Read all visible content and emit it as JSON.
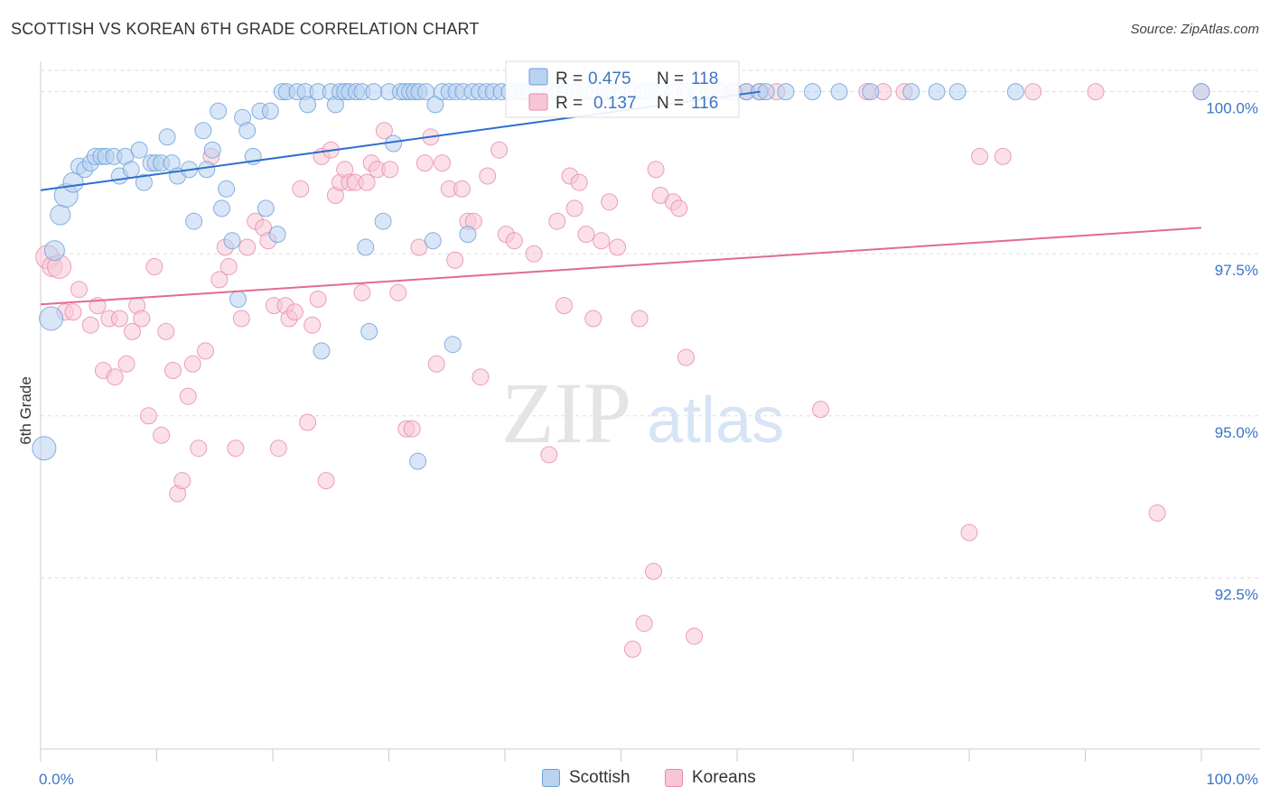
{
  "title": "SCOTTISH VS KOREAN 6TH GRADE CORRELATION CHART",
  "source": "Source: ZipAtlas.com",
  "watermark": {
    "zip": "ZIP",
    "atlas": "atlas"
  },
  "chart_data": {
    "type": "scatter",
    "xlabel": "",
    "ylabel": "6th Grade",
    "xlim": [
      0,
      100
    ],
    "ylim": [
      90.0,
      100.3
    ],
    "x_tick_labels": [
      "0.0%",
      "100.0%"
    ],
    "y_ticks": [
      {
        "value": 100.0,
        "label": "100.0%"
      },
      {
        "value": 97.5,
        "label": "97.5%"
      },
      {
        "value": 95.0,
        "label": "95.0%"
      },
      {
        "value": 92.5,
        "label": "92.5%"
      }
    ],
    "grid": true,
    "legend_position": "top-center",
    "series": [
      {
        "name": "Scottish",
        "color": "#6a9fd8",
        "fill": "#b8d2f0",
        "stats": {
          "r_label": "R =",
          "r_value": "0.475",
          "n_label": "N =",
          "n_value": "118"
        },
        "trend": {
          "x0": 0,
          "y0": 98.48,
          "x1": 62,
          "y1": 100.0
        },
        "points": [
          [
            0.3,
            94.5
          ],
          [
            1.2,
            97.55
          ],
          [
            0.9,
            96.5
          ],
          [
            1.7,
            98.1
          ],
          [
            2.2,
            98.4
          ],
          [
            2.8,
            98.6
          ],
          [
            3.3,
            98.85
          ],
          [
            3.8,
            98.8
          ],
          [
            4.3,
            98.9
          ],
          [
            4.7,
            99.0
          ],
          [
            5.2,
            99.0
          ],
          [
            5.6,
            99.0
          ],
          [
            6.3,
            99.0
          ],
          [
            6.8,
            98.7
          ],
          [
            7.3,
            99.0
          ],
          [
            7.8,
            98.8
          ],
          [
            8.5,
            99.1
          ],
          [
            8.9,
            98.6
          ],
          [
            9.5,
            98.9
          ],
          [
            9.9,
            98.9
          ],
          [
            10.4,
            98.9
          ],
          [
            10.9,
            99.3
          ],
          [
            11.3,
            98.9
          ],
          [
            11.8,
            98.7
          ],
          [
            12.8,
            98.8
          ],
          [
            13.2,
            98.0
          ],
          [
            14.0,
            99.4
          ],
          [
            14.3,
            98.8
          ],
          [
            14.8,
            99.1
          ],
          [
            15.3,
            99.7
          ],
          [
            15.6,
            98.2
          ],
          [
            16.0,
            98.5
          ],
          [
            16.5,
            97.7
          ],
          [
            17.0,
            96.8
          ],
          [
            17.4,
            99.6
          ],
          [
            17.8,
            99.4
          ],
          [
            18.3,
            99.0
          ],
          [
            18.9,
            99.7
          ],
          [
            19.4,
            98.2
          ],
          [
            19.8,
            99.7
          ],
          [
            20.4,
            97.8
          ],
          [
            20.8,
            100.0
          ],
          [
            21.2,
            100.0
          ],
          [
            22.1,
            100.0
          ],
          [
            22.8,
            100.0
          ],
          [
            23.0,
            99.8
          ],
          [
            23.9,
            100.0
          ],
          [
            24.2,
            96.0
          ],
          [
            25.0,
            100.0
          ],
          [
            25.4,
            99.8
          ],
          [
            25.8,
            100.0
          ],
          [
            26.2,
            100.0
          ],
          [
            26.6,
            100.0
          ],
          [
            27.2,
            100.0
          ],
          [
            27.7,
            100.0
          ],
          [
            28.0,
            97.6
          ],
          [
            28.3,
            96.3
          ],
          [
            28.7,
            100.0
          ],
          [
            29.5,
            98.0
          ],
          [
            30.0,
            100.0
          ],
          [
            30.4,
            99.2
          ],
          [
            31.0,
            100.0
          ],
          [
            31.4,
            100.0
          ],
          [
            31.8,
            100.0
          ],
          [
            32.2,
            100.0
          ],
          [
            32.6,
            100.0
          ],
          [
            33.2,
            100.0
          ],
          [
            33.8,
            97.7
          ],
          [
            34.0,
            99.8
          ],
          [
            34.6,
            100.0
          ],
          [
            35.2,
            100.0
          ],
          [
            35.8,
            100.0
          ],
          [
            36.4,
            100.0
          ],
          [
            36.8,
            97.8
          ],
          [
            37.2,
            100.0
          ],
          [
            37.8,
            100.0
          ],
          [
            38.4,
            100.0
          ],
          [
            39.0,
            100.0
          ],
          [
            39.7,
            100.0
          ],
          [
            40.4,
            100.0
          ],
          [
            41.0,
            100.0
          ],
          [
            41.5,
            100.0
          ],
          [
            42.0,
            100.0
          ],
          [
            42.7,
            100.0
          ],
          [
            43.4,
            100.0
          ],
          [
            44.0,
            100.0
          ],
          [
            44.6,
            100.0
          ],
          [
            45.2,
            100.0
          ],
          [
            46.0,
            100.0
          ],
          [
            46.9,
            100.0
          ],
          [
            47.7,
            100.0
          ],
          [
            48.6,
            100.0
          ],
          [
            49.3,
            100.0
          ],
          [
            50.1,
            100.0
          ],
          [
            51.0,
            100.0
          ],
          [
            51.9,
            100.0
          ],
          [
            52.7,
            100.0
          ],
          [
            53.5,
            100.0
          ],
          [
            54.5,
            100.0
          ],
          [
            55.5,
            100.0
          ],
          [
            56.6,
            100.0
          ],
          [
            57.6,
            100.0
          ],
          [
            58.6,
            100.0
          ],
          [
            59.7,
            100.0
          ],
          [
            32.5,
            94.3
          ],
          [
            35.5,
            96.1
          ],
          [
            60.8,
            100.0
          ],
          [
            61.9,
            100.0
          ],
          [
            62.5,
            100.0
          ],
          [
            64.2,
            100.0
          ],
          [
            66.5,
            100.0
          ],
          [
            68.8,
            100.0
          ],
          [
            71.5,
            100.0
          ],
          [
            75.0,
            100.0
          ],
          [
            77.2,
            100.0
          ],
          [
            79.0,
            100.0
          ],
          [
            84.0,
            100.0
          ],
          [
            100.0,
            100.0
          ]
        ]
      },
      {
        "name": "Koreans",
        "color": "#e68aa9",
        "fill": "#f7c6d5",
        "stats": {
          "r_label": "R =",
          "r_value": "0.137",
          "n_label": "N =",
          "n_value": "116"
        },
        "trend": {
          "x0": 0,
          "y0": 96.72,
          "x1": 100,
          "y1": 97.9
        },
        "points": [
          [
            0.6,
            97.45
          ],
          [
            1.0,
            97.3
          ],
          [
            1.6,
            97.3
          ],
          [
            2.1,
            96.6
          ],
          [
            2.8,
            96.6
          ],
          [
            3.3,
            96.95
          ],
          [
            4.3,
            96.4
          ],
          [
            4.9,
            96.7
          ],
          [
            5.4,
            95.7
          ],
          [
            5.9,
            96.5
          ],
          [
            6.4,
            95.6
          ],
          [
            6.8,
            96.5
          ],
          [
            7.4,
            95.8
          ],
          [
            7.9,
            96.3
          ],
          [
            8.3,
            96.7
          ],
          [
            8.7,
            96.5
          ],
          [
            9.3,
            95.0
          ],
          [
            9.8,
            97.3
          ],
          [
            10.4,
            94.7
          ],
          [
            10.8,
            96.3
          ],
          [
            11.4,
            95.7
          ],
          [
            11.8,
            93.8
          ],
          [
            12.2,
            94.0
          ],
          [
            12.7,
            95.3
          ],
          [
            13.1,
            95.8
          ],
          [
            13.6,
            94.5
          ],
          [
            14.2,
            96.0
          ],
          [
            14.7,
            99.0
          ],
          [
            15.4,
            97.1
          ],
          [
            15.9,
            97.6
          ],
          [
            16.2,
            97.3
          ],
          [
            16.8,
            94.5
          ],
          [
            17.3,
            96.5
          ],
          [
            17.8,
            97.6
          ],
          [
            18.5,
            98.0
          ],
          [
            19.2,
            97.9
          ],
          [
            19.6,
            97.7
          ],
          [
            20.1,
            96.7
          ],
          [
            20.5,
            94.5
          ],
          [
            21.1,
            96.7
          ],
          [
            21.4,
            96.5
          ],
          [
            21.9,
            96.6
          ],
          [
            22.4,
            98.5
          ],
          [
            23.0,
            94.9
          ],
          [
            23.4,
            96.4
          ],
          [
            23.9,
            96.8
          ],
          [
            24.2,
            99.0
          ],
          [
            24.6,
            94.0
          ],
          [
            25.0,
            99.1
          ],
          [
            25.4,
            98.4
          ],
          [
            25.8,
            98.6
          ],
          [
            26.2,
            98.8
          ],
          [
            26.6,
            98.6
          ],
          [
            27.1,
            98.6
          ],
          [
            27.7,
            96.9
          ],
          [
            28.1,
            98.6
          ],
          [
            28.5,
            98.9
          ],
          [
            29.0,
            98.8
          ],
          [
            29.6,
            99.4
          ],
          [
            30.1,
            98.8
          ],
          [
            30.8,
            96.9
          ],
          [
            31.5,
            94.8
          ],
          [
            32.0,
            94.8
          ],
          [
            32.6,
            97.6
          ],
          [
            33.1,
            98.9
          ],
          [
            33.6,
            99.3
          ],
          [
            34.1,
            95.8
          ],
          [
            34.6,
            98.9
          ],
          [
            35.2,
            98.5
          ],
          [
            35.7,
            97.4
          ],
          [
            36.3,
            98.5
          ],
          [
            36.8,
            98.0
          ],
          [
            37.3,
            98.0
          ],
          [
            37.9,
            95.6
          ],
          [
            38.5,
            98.7
          ],
          [
            39.5,
            99.1
          ],
          [
            40.1,
            97.8
          ],
          [
            40.8,
            97.7
          ],
          [
            42.5,
            97.5
          ],
          [
            43.8,
            94.4
          ],
          [
            44.5,
            98.0
          ],
          [
            45.1,
            96.7
          ],
          [
            45.6,
            98.7
          ],
          [
            46.0,
            98.2
          ],
          [
            46.4,
            98.6
          ],
          [
            47.0,
            97.8
          ],
          [
            47.6,
            96.5
          ],
          [
            48.3,
            97.7
          ],
          [
            49.0,
            98.3
          ],
          [
            49.7,
            97.6
          ],
          [
            51.0,
            91.4
          ],
          [
            51.6,
            96.5
          ],
          [
            52.0,
            91.8
          ],
          [
            52.8,
            92.6
          ],
          [
            53.0,
            98.8
          ],
          [
            53.4,
            98.4
          ],
          [
            54.5,
            98.3
          ],
          [
            55.0,
            98.2
          ],
          [
            55.6,
            95.9
          ],
          [
            56.3,
            91.6
          ],
          [
            58.0,
            100.0
          ],
          [
            59.6,
            100.0
          ],
          [
            60.8,
            100.0
          ],
          [
            62.0,
            100.0
          ],
          [
            63.4,
            100.0
          ],
          [
            67.2,
            95.1
          ],
          [
            71.2,
            100.0
          ],
          [
            72.6,
            100.0
          ],
          [
            74.4,
            100.0
          ],
          [
            80.0,
            93.2
          ],
          [
            80.9,
            99.0
          ],
          [
            82.9,
            99.0
          ],
          [
            85.5,
            100.0
          ],
          [
            90.9,
            100.0
          ],
          [
            96.2,
            93.5
          ],
          [
            100.0,
            100.0
          ]
        ]
      }
    ]
  }
}
